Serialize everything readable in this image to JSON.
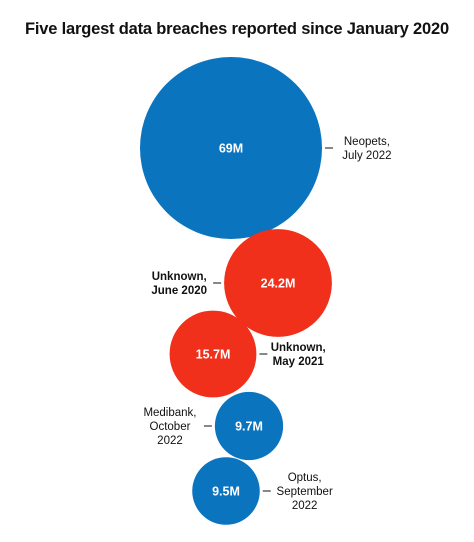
{
  "chart_data": {
    "type": "bubble",
    "title": "Five largest data breaches reported since January 2020",
    "unit": "M",
    "colors": {
      "blue": "#0a74bf",
      "red": "#f0301b"
    },
    "points": [
      {
        "value": 69,
        "value_label": "69M",
        "label_lines": [
          "Neopets,",
          "July 2022"
        ],
        "color": "#0a74bf",
        "label_bold": false
      },
      {
        "value": 24.2,
        "value_label": "24.2M",
        "label_lines": [
          "Unknown,",
          "June 2020"
        ],
        "color": "#f0301b",
        "label_bold": true
      },
      {
        "value": 15.7,
        "value_label": "15.7M",
        "label_lines": [
          "Unknown,",
          "May 2021"
        ],
        "color": "#f0301b",
        "label_bold": true
      },
      {
        "value": 9.7,
        "value_label": "9.7M",
        "label_lines": [
          "Medibank,",
          "October",
          "2022"
        ],
        "color": "#0a74bf",
        "label_bold": false
      },
      {
        "value": 9.5,
        "value_label": "9.5M",
        "label_lines": [
          "Optus,",
          "September",
          "2022"
        ],
        "color": "#0a74bf",
        "label_bold": false
      }
    ]
  }
}
